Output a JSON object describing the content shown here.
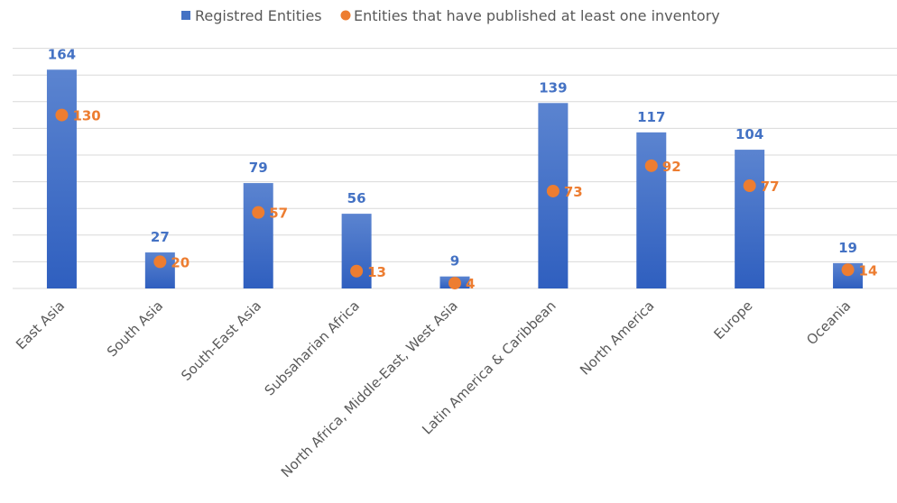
{
  "chart_data": {
    "type": "bar",
    "title": "",
    "xlabel": "",
    "ylabel": "",
    "ylim": [
      0,
      180
    ],
    "grid": true,
    "legend_position": "top-center",
    "categories": [
      "East Asia",
      "South Asia",
      "South-East Asia",
      "Subsaharian Africa",
      "North Africa, Middle-East, West Asia",
      "Latin America & Caribbean",
      "North America",
      "Europe",
      "Oceania"
    ],
    "series": [
      {
        "name": "Registred Entities",
        "type": "bar",
        "color": "#4472C4",
        "values": [
          164,
          27,
          79,
          56,
          9,
          139,
          117,
          104,
          19
        ]
      },
      {
        "name": "Entities that have published at least one inventory",
        "type": "scatter",
        "color": "#ED7D31",
        "values": [
          130,
          20,
          57,
          13,
          4,
          73,
          92,
          77,
          14
        ]
      }
    ]
  }
}
